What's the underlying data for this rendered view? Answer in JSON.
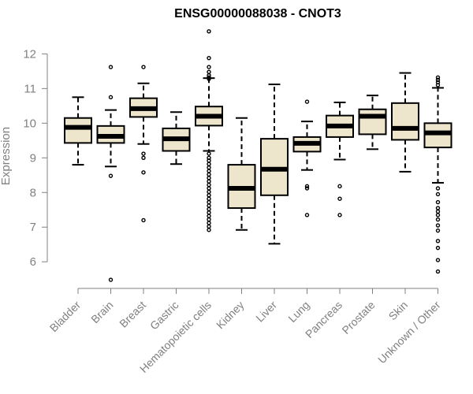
{
  "chart_data": {
    "type": "boxplot",
    "title": "ENSG00000088038 - CNOT3",
    "xlabel": "",
    "ylabel": "Expression",
    "ylim": [
      5.3,
      12.6
    ],
    "yticks": [
      6,
      7,
      8,
      9,
      10,
      11,
      12
    ],
    "colors": {
      "box_fill": "#ede6cd",
      "stroke": "#000000",
      "axis": "#808080"
    },
    "categories": [
      "Bladder",
      "Brain",
      "Breast",
      "Gastric",
      "Hematopoietic cells",
      "Kidney",
      "Liver",
      "Lung",
      "Pancreas",
      "Prostate",
      "Skin",
      "Unknown / Other"
    ],
    "boxes": [
      {
        "name": "Bladder",
        "whisker_low": 8.8,
        "q1": 9.43,
        "median": 9.88,
        "q3": 10.15,
        "whisker_high": 10.75,
        "outliers": []
      },
      {
        "name": "Brain",
        "whisker_low": 8.75,
        "q1": 9.43,
        "median": 9.62,
        "q3": 9.92,
        "whisker_high": 10.38,
        "outliers": [
          11.62,
          10.75,
          8.48,
          5.48
        ]
      },
      {
        "name": "Breast",
        "whisker_low": 9.4,
        "q1": 10.18,
        "median": 10.42,
        "q3": 10.72,
        "whisker_high": 11.15,
        "outliers": [
          11.62,
          9.12,
          9.0,
          8.58,
          7.2
        ]
      },
      {
        "name": "Gastric",
        "whisker_low": 8.82,
        "q1": 9.2,
        "median": 9.55,
        "q3": 9.85,
        "whisker_high": 10.32,
        "outliers": []
      },
      {
        "name": "Hematopoietic cells",
        "whisker_low": 9.2,
        "q1": 9.93,
        "median": 10.2,
        "q3": 10.48,
        "whisker_high": 11.3,
        "outliers": [
          12.65,
          11.88,
          11.62,
          11.48,
          11.38,
          11.32,
          11.28,
          9.12,
          9.0,
          8.92,
          8.82,
          8.72,
          8.62,
          8.52,
          8.42,
          8.32,
          8.22,
          8.12,
          8.02,
          7.92,
          7.82,
          7.72,
          7.62,
          7.52,
          7.42,
          7.32,
          7.22,
          7.12,
          7.02,
          6.92
        ]
      },
      {
        "name": "Kidney",
        "whisker_low": 6.92,
        "q1": 7.55,
        "median": 8.12,
        "q3": 8.8,
        "whisker_high": 10.15,
        "outliers": []
      },
      {
        "name": "Liver",
        "whisker_low": 6.52,
        "q1": 7.92,
        "median": 8.67,
        "q3": 9.55,
        "whisker_high": 11.12,
        "outliers": []
      },
      {
        "name": "Lung",
        "whisker_low": 8.65,
        "q1": 9.18,
        "median": 9.42,
        "q3": 9.6,
        "whisker_high": 10.05,
        "outliers": [
          10.62,
          8.18,
          8.12,
          7.35
        ]
      },
      {
        "name": "Pancreas",
        "whisker_low": 8.95,
        "q1": 9.6,
        "median": 9.92,
        "q3": 10.22,
        "whisker_high": 10.6,
        "outliers": [
          8.18,
          7.82,
          7.35
        ]
      },
      {
        "name": "Prostate",
        "whisker_low": 9.25,
        "q1": 9.68,
        "median": 10.2,
        "q3": 10.4,
        "whisker_high": 10.8,
        "outliers": []
      },
      {
        "name": "Skin",
        "whisker_low": 8.6,
        "q1": 9.52,
        "median": 9.85,
        "q3": 10.58,
        "whisker_high": 11.45,
        "outliers": []
      },
      {
        "name": "Unknown / Other",
        "whisker_low": 8.28,
        "q1": 9.3,
        "median": 9.72,
        "q3": 10.0,
        "whisker_high": 11.02,
        "outliers": [
          11.32,
          11.25,
          11.18,
          11.1,
          8.12,
          7.95,
          7.72,
          7.55,
          7.45,
          7.35,
          7.22,
          7.05,
          6.9,
          6.6,
          6.4,
          6.05,
          5.72
        ]
      }
    ]
  }
}
